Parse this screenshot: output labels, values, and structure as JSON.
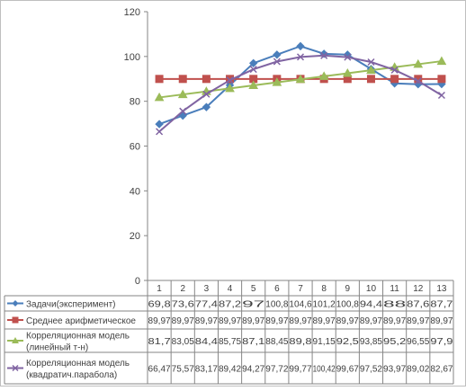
{
  "chart_data": {
    "type": "line",
    "categories": [
      "1",
      "2",
      "3",
      "4",
      "5",
      "6",
      "7",
      "8",
      "9",
      "10",
      "11",
      "12",
      "13"
    ],
    "ylim": [
      0,
      120
    ],
    "yticks": [
      0,
      20,
      40,
      60,
      80,
      100,
      120
    ],
    "grid": false,
    "legend": "data-table-left",
    "series": [
      {
        "name": "Задачи(эксперимент)",
        "color": "#4a7ebb",
        "marker": "diamond",
        "values": [
          69.8,
          73.6,
          77.4,
          87.2,
          97,
          100.8,
          104.6,
          101.2,
          100.8,
          94.4,
          88,
          87.6,
          87.7
        ],
        "labels": [
          "69,8",
          "73,6",
          "77,4",
          "87,2",
          "97",
          "100,8",
          "104,6",
          "101,2",
          "100,8",
          "94,4",
          "88",
          "87,6",
          "87,7"
        ]
      },
      {
        "name": "Среднее арифметическое",
        "color": "#c0504d",
        "marker": "square",
        "values": [
          89.97,
          89.97,
          89.97,
          89.97,
          89.97,
          89.97,
          89.97,
          89.97,
          89.97,
          89.97,
          89.97,
          89.97,
          89.97
        ],
        "labels": [
          "89,97",
          "89,97",
          "89,97",
          "89,97",
          "89,97",
          "89,97",
          "89,97",
          "89,97",
          "89,97",
          "89,97",
          "89,97",
          "89,97",
          "89,97"
        ]
      },
      {
        "name": "Корреляционная модель (линейный т-н)",
        "color": "#9bbb59",
        "marker": "triangle",
        "values": [
          81.7,
          83.05,
          84.4,
          85.75,
          87.1,
          88.45,
          89.8,
          91.15,
          92.5,
          93.85,
          95.2,
          96.55,
          97.9
        ],
        "labels": [
          "81,7",
          "83,05",
          "84,4",
          "85,75",
          "87,1",
          "88,45",
          "89,8",
          "91,15",
          "92,5",
          "93,85",
          "95,2",
          "96,55",
          "97,9"
        ]
      },
      {
        "name": "Корреляционная модель (квадратич.парабола)",
        "color": "#8064a2",
        "marker": "x",
        "values": [
          66.47,
          75.57,
          83.17,
          89.42,
          94.27,
          97.72,
          99.77,
          100.42,
          99.67,
          97.52,
          93.97,
          89.02,
          82.67
        ],
        "labels": [
          "66,47",
          "75,57",
          "83,17",
          "89,42",
          "94,27",
          "97,72",
          "99,77",
          "100,42",
          "99,67",
          "97,52",
          "93,97",
          "89,02",
          "82,67"
        ]
      }
    ]
  }
}
